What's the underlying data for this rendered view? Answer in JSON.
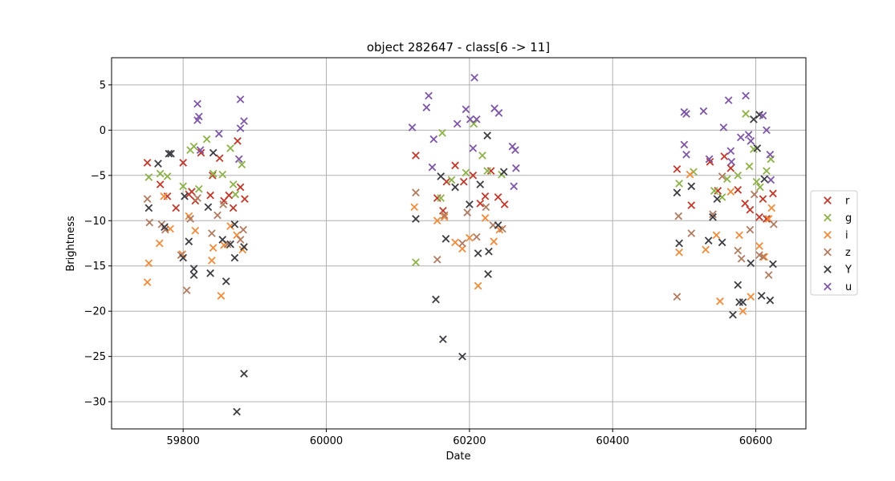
{
  "chart_data": {
    "type": "scatter",
    "title": "object 282647 - class[6 -> 11]",
    "xlabel": "Date",
    "ylabel": "Brightness",
    "xlim": [
      59700,
      60670
    ],
    "ylim": [
      -33,
      8
    ],
    "xticks": [
      59800,
      60000,
      60200,
      60400,
      60600
    ],
    "yticks": [
      5,
      0,
      -5,
      -10,
      -15,
      -20,
      -25,
      -30
    ],
    "xtick_labels": [
      "59800",
      "60000",
      "60200",
      "60400",
      "60600"
    ],
    "ytick_labels": [
      "5",
      "0",
      "−5",
      "−10",
      "−15",
      "−20",
      "−25",
      "−30"
    ],
    "grid": true,
    "legend_position": "right-center",
    "marker": "x",
    "series": [
      {
        "name": "r",
        "color": "#c0392b",
        "points": [
          [
            59750,
            -3.6
          ],
          [
            59768,
            -6
          ],
          [
            59778,
            -7.3
          ],
          [
            59790,
            -8.6
          ],
          [
            59800,
            -3.6
          ],
          [
            59808,
            -7.1
          ],
          [
            59812,
            -6.8
          ],
          [
            59817,
            -7.8
          ],
          [
            59825,
            -2.5
          ],
          [
            59838,
            -7.2
          ],
          [
            59841,
            -5
          ],
          [
            59851,
            -3.1
          ],
          [
            59857,
            -7.8
          ],
          [
            59864,
            -7.2
          ],
          [
            59870,
            -8.6
          ],
          [
            59876,
            -1.2
          ],
          [
            59880,
            -6.3
          ],
          [
            59886,
            -7.6
          ],
          [
            60125,
            -2.8
          ],
          [
            60155,
            -7.5
          ],
          [
            60163,
            -8.9
          ],
          [
            60168,
            -5.7
          ],
          [
            60180,
            -3.9
          ],
          [
            60192,
            -5.7
          ],
          [
            60205,
            -5
          ],
          [
            60215,
            -8.1
          ],
          [
            60222,
            -7.3
          ],
          [
            60230,
            -4.5
          ],
          [
            60240,
            -7.4
          ],
          [
            60249,
            -8.2
          ],
          [
            60490,
            -4.3
          ],
          [
            60510,
            -8.3
          ],
          [
            60536,
            -3.5
          ],
          [
            60547,
            -6.7
          ],
          [
            60556,
            -2.9
          ],
          [
            60565,
            -4.2
          ],
          [
            60575,
            -6.6
          ],
          [
            60585,
            -8.1
          ],
          [
            60592,
            -8.8
          ],
          [
            60605,
            -9.6
          ],
          [
            60610,
            -7.6
          ],
          [
            60615,
            -9.8
          ],
          [
            60624,
            -7
          ]
        ]
      },
      {
        "name": "g",
        "color": "#8db249",
        "points": [
          [
            59752,
            -5.2
          ],
          [
            59768,
            -4.8
          ],
          [
            59778,
            -5.1
          ],
          [
            59800,
            -6.2
          ],
          [
            59810,
            -2.2
          ],
          [
            59815,
            -1.8
          ],
          [
            59822,
            -6.5
          ],
          [
            59833,
            -1
          ],
          [
            59842,
            -4.8
          ],
          [
            59855,
            -4.9
          ],
          [
            59866,
            -2
          ],
          [
            59870,
            -6
          ],
          [
            59873,
            -7.1
          ],
          [
            59882,
            -3.8
          ],
          [
            60125,
            -14.6
          ],
          [
            60160,
            -7.5
          ],
          [
            60162,
            -0.3
          ],
          [
            60175,
            -5.5
          ],
          [
            60195,
            -4.7
          ],
          [
            60206,
            0.7
          ],
          [
            60218,
            -2.8
          ],
          [
            60225,
            -4.5
          ],
          [
            60245,
            -4.9
          ],
          [
            60493,
            -5.9
          ],
          [
            60513,
            -4.6
          ],
          [
            60542,
            -6.7
          ],
          [
            60553,
            -7.4
          ],
          [
            60560,
            -5.4
          ],
          [
            60575,
            -5
          ],
          [
            60586,
            1.8
          ],
          [
            60591,
            -4
          ],
          [
            60597,
            -2.1
          ],
          [
            60601,
            -5.7
          ],
          [
            60606,
            -6.3
          ],
          [
            60615,
            -4.5
          ],
          [
            60621,
            -3.2
          ]
        ]
      },
      {
        "name": "i",
        "color": "#f08c3c",
        "points": [
          [
            59750,
            -16.8
          ],
          [
            59752,
            -14.7
          ],
          [
            59767,
            -12.5
          ],
          [
            59773,
            -7.3
          ],
          [
            59782,
            -10.9
          ],
          [
            59799,
            -13.7
          ],
          [
            59808,
            -9.5
          ],
          [
            59817,
            -11.1
          ],
          [
            59840,
            -14.4
          ],
          [
            59842,
            -13
          ],
          [
            59853,
            -18.3
          ],
          [
            59857,
            -12.7
          ],
          [
            59866,
            -10.6
          ],
          [
            59875,
            -11.6
          ],
          [
            59883,
            -13.2
          ],
          [
            60123,
            -8.5
          ],
          [
            60155,
            -10
          ],
          [
            60165,
            -9.6
          ],
          [
            60180,
            -12.4
          ],
          [
            60190,
            -13.1
          ],
          [
            60200,
            -11.9
          ],
          [
            60212,
            -17.2
          ],
          [
            60222,
            -9.7
          ],
          [
            60234,
            -12.3
          ],
          [
            60242,
            -11
          ],
          [
            60493,
            -13.5
          ],
          [
            60508,
            -4.9
          ],
          [
            60530,
            -13.2
          ],
          [
            60545,
            -11.6
          ],
          [
            60550,
            -18.9
          ],
          [
            60565,
            -6.8
          ],
          [
            60577,
            -11.6
          ],
          [
            60582,
            -20
          ],
          [
            60593,
            -18.4
          ],
          [
            60605,
            -12.8
          ],
          [
            60612,
            -14
          ],
          [
            60618,
            -9.8
          ],
          [
            60622,
            -8.6
          ]
        ]
      },
      {
        "name": "z",
        "color": "#b07c62",
        "points": [
          [
            59750,
            -7.6
          ],
          [
            59753,
            -10.2
          ],
          [
            59770,
            -10.4
          ],
          [
            59775,
            -11
          ],
          [
            59797,
            -13.8
          ],
          [
            59805,
            -17.7
          ],
          [
            59810,
            -9.8
          ],
          [
            59820,
            -7.5
          ],
          [
            59840,
            -11.4
          ],
          [
            59848,
            -9.4
          ],
          [
            59856,
            -8.2
          ],
          [
            59862,
            -12.6
          ],
          [
            59880,
            -12.1
          ],
          [
            59884,
            -11
          ],
          [
            60125,
            -6.9
          ],
          [
            60155,
            -14.3
          ],
          [
            60165,
            -9.4
          ],
          [
            60190,
            -12.5
          ],
          [
            60197,
            -9.1
          ],
          [
            60210,
            -11.8
          ],
          [
            60223,
            -8.5
          ],
          [
            60233,
            -10.5
          ],
          [
            60246,
            -10.9
          ],
          [
            60490,
            -18.4
          ],
          [
            60492,
            -9.5
          ],
          [
            60510,
            -11.4
          ],
          [
            60540,
            -9.3
          ],
          [
            60553,
            -5.1
          ],
          [
            60575,
            -13.3
          ],
          [
            60580,
            -14.2
          ],
          [
            60592,
            -11
          ],
          [
            60598,
            -7.1
          ],
          [
            60605,
            -13.8
          ],
          [
            60610,
            -14
          ],
          [
            60618,
            -16
          ],
          [
            60625,
            -10.4
          ]
        ]
      },
      {
        "name": "Y",
        "color": "#3d3d44",
        "points": [
          [
            59752,
            -8.6
          ],
          [
            59765,
            -3.7
          ],
          [
            59774,
            -10.7
          ],
          [
            59780,
            -2.6
          ],
          [
            59783,
            -2.6
          ],
          [
            59800,
            -14.1
          ],
          [
            59802,
            -7.3
          ],
          [
            59808,
            -12.3
          ],
          [
            59815,
            -15.3
          ],
          [
            59815,
            -16
          ],
          [
            59835,
            -8.5
          ],
          [
            59838,
            -15.8
          ],
          [
            59842,
            -2.5
          ],
          [
            59855,
            -12.1
          ],
          [
            59860,
            -16.7
          ],
          [
            59866,
            -12.6
          ],
          [
            59872,
            -10.4
          ],
          [
            59872,
            -14.1
          ],
          [
            59875,
            -31.1
          ],
          [
            59885,
            -12.9
          ],
          [
            59885,
            -26.9
          ],
          [
            60125,
            -9.8
          ],
          [
            60153,
            -18.7
          ],
          [
            60160,
            -5.1
          ],
          [
            60163,
            -23.1
          ],
          [
            60167,
            -12
          ],
          [
            60180,
            -6.3
          ],
          [
            60190,
            -25
          ],
          [
            60200,
            -8.2
          ],
          [
            60212,
            -13.6
          ],
          [
            60215,
            -6
          ],
          [
            60225,
            -0.6
          ],
          [
            60226,
            -15.9
          ],
          [
            60227,
            -13.4
          ],
          [
            60240,
            -10.5
          ],
          [
            60248,
            -4.6
          ],
          [
            60490,
            -6.9
          ],
          [
            60493,
            -12.5
          ],
          [
            60510,
            -6.2
          ],
          [
            60534,
            -12.2
          ],
          [
            60540,
            -9.6
          ],
          [
            60546,
            -7.6
          ],
          [
            60553,
            -12.4
          ],
          [
            60568,
            -20.4
          ],
          [
            60575,
            -17.1
          ],
          [
            60577,
            -19
          ],
          [
            60582,
            -19
          ],
          [
            60593,
            -14.7
          ],
          [
            60597,
            1.2
          ],
          [
            60602,
            -2
          ],
          [
            60605,
            1.7
          ],
          [
            60608,
            -18.3
          ],
          [
            60612,
            -5.4
          ],
          [
            60620,
            -18.8
          ],
          [
            60624,
            -14.8
          ]
        ]
      },
      {
        "name": "u",
        "color": "#7e57a6",
        "points": [
          [
            59820,
            2.9
          ],
          [
            59822,
            1.5
          ],
          [
            59820,
            1.1
          ],
          [
            59824,
            -2.2
          ],
          [
            59850,
            -0.4
          ],
          [
            59880,
            3.4
          ],
          [
            59885,
            1
          ],
          [
            59880,
            0.2
          ],
          [
            59878,
            -3.2
          ],
          [
            60120,
            0.3
          ],
          [
            60140,
            2.5
          ],
          [
            60143,
            3.8
          ],
          [
            60148,
            -4.1
          ],
          [
            60150,
            -1
          ],
          [
            60183,
            0.7
          ],
          [
            60195,
            2.3
          ],
          [
            60201,
            1.2
          ],
          [
            60207,
            5.8
          ],
          [
            60210,
            1.2
          ],
          [
            60205,
            -2
          ],
          [
            60235,
            2.4
          ],
          [
            60241,
            1.9
          ],
          [
            60260,
            -1.8
          ],
          [
            60264,
            -2.2
          ],
          [
            60265,
            -4.2
          ],
          [
            60262,
            -6.2
          ],
          [
            60500,
            2
          ],
          [
            60503,
            1.8
          ],
          [
            60500,
            -1.6
          ],
          [
            60503,
            -2.7
          ],
          [
            60527,
            2.1
          ],
          [
            60535,
            -3.2
          ],
          [
            60555,
            0.3
          ],
          [
            60562,
            3.3
          ],
          [
            60565,
            -2.3
          ],
          [
            60566,
            -3.5
          ],
          [
            60579,
            -0.8
          ],
          [
            60586,
            3.8
          ],
          [
            60590,
            -0.5
          ],
          [
            60593,
            -1.2
          ],
          [
            60610,
            1.6
          ],
          [
            60615,
            0
          ],
          [
            60620,
            -2.7
          ],
          [
            60621,
            -5.5
          ]
        ]
      }
    ]
  }
}
